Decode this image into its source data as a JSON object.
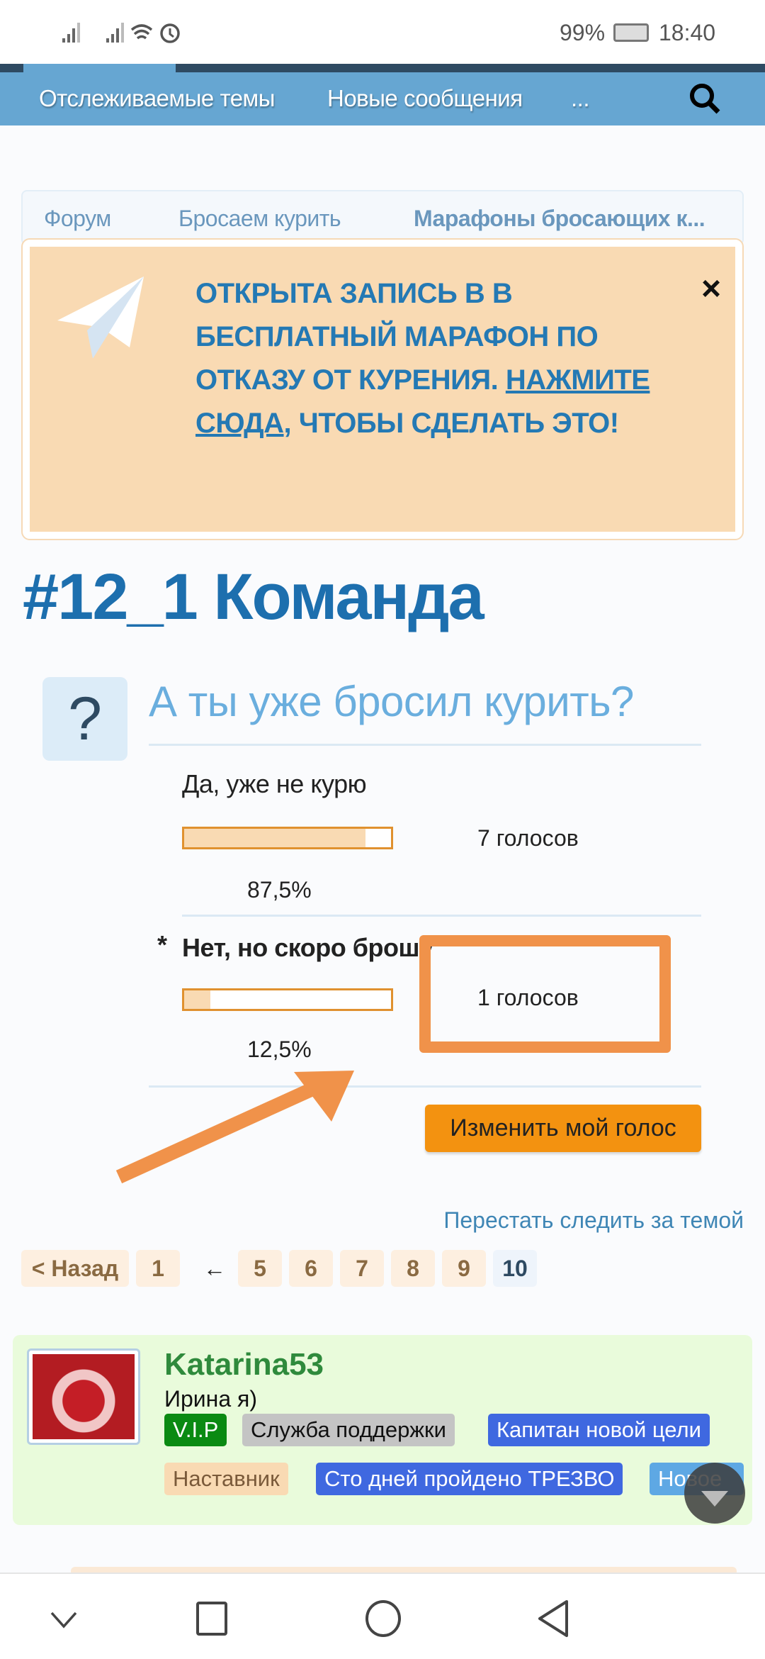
{
  "status_bar": {
    "battery": "99%",
    "time": "18:40",
    "icons": [
      "signal-icon",
      "signal-icon",
      "wifi-icon",
      "alarm-icon",
      "battery-icon"
    ]
  },
  "nav": {
    "items": [
      "Отслеживаемые темы",
      "Новые сообщения",
      "..."
    ],
    "search_icon": "search-icon"
  },
  "breadcrumb": [
    "Форум",
    "Бросаем курить",
    "Марафоны бросающих к..."
  ],
  "banner": {
    "line1": "ОТКРЫТА ЗАПИСЬ В В БЕСПЛАТНЫЙ МАРАФОН ПО ОТКАЗУ ОТ КУРЕНИЯ.",
    "link": "НАЖМИТЕ СЮДА",
    "line2": ", ЧТОБЫ СДЕЛАТЬ ЭТО!",
    "close": "×",
    "icon": "telegram-plane-icon"
  },
  "thread_title": "#12_1 Команда",
  "poll": {
    "icon": "?",
    "question": "А ты уже бросил курить?",
    "options": [
      {
        "marker": "",
        "label": "Да, уже не курю",
        "votes": "7 голосов",
        "percent": "87,5%",
        "fraction": 0.875
      },
      {
        "marker": "*",
        "label": "Нет, но скоро брошу",
        "votes": "1 голосов",
        "percent": "12,5%",
        "fraction": 0.125
      }
    ],
    "change_vote": "Изменить мой голос"
  },
  "annotation": {
    "color": "#f0924a"
  },
  "unfollow": "Перестать следить за темой",
  "pagination": {
    "prev": "< Назад",
    "pages": [
      "1",
      "←",
      "5",
      "6",
      "7",
      "8",
      "9",
      "10"
    ],
    "current": "10"
  },
  "post": {
    "username": "Katarina53",
    "user_title": "Ирина я)",
    "badges": [
      {
        "label": "V.I.P",
        "bg": "#0a8a12",
        "fg": "#ffffff"
      },
      {
        "label": "Служба поддержки",
        "bg": "#c4c4c4",
        "fg": "#111111"
      },
      {
        "label": "Капитан новой цели",
        "bg": "#3f68e0",
        "fg": "#ffffff"
      },
      {
        "label": "Наставник",
        "bg": "#f9dab3",
        "fg": "#7a5a3a"
      },
      {
        "label": "Сто дней пройдено ТРЕЗВО",
        "bg": "#3f68e0",
        "fg": "#ffffff"
      },
      {
        "label": "Новое",
        "bg": "#5ea8e4",
        "fg": "#ffffff"
      }
    ]
  },
  "colors": {
    "nav": "#66a6d2",
    "title": "#1d6fae",
    "button": "#f39210",
    "card": "#e9fbdb"
  }
}
